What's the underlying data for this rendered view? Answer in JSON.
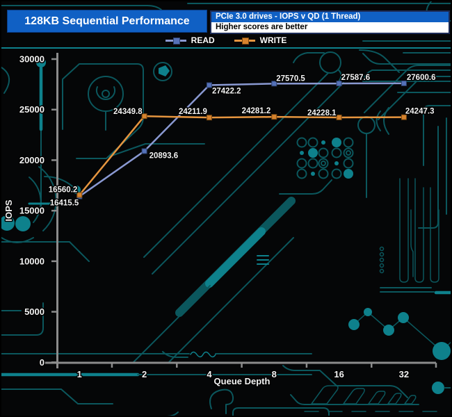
{
  "header": {
    "title": "128KB Sequential Performance",
    "subtitle": "PCIe 3.0 drives - IOPS v QD (1 Thread)",
    "note": "Higher scores are better"
  },
  "colors": {
    "title_bg": "#1060c4",
    "note_bg": "#ffffff",
    "axis": "#8c8c8c",
    "read_line": "#8a99d2",
    "read_marker": "#5571b8",
    "write_line": "#e6953f",
    "write_marker": "#d6832e",
    "label_text": "#f2f2f2",
    "write_qd1_label": "#e8923c",
    "circuit_dim": "#0b575d",
    "circuit_bright": "#0e818c"
  },
  "legend": {
    "items": [
      {
        "label": "READ"
      },
      {
        "label": "WRITE"
      }
    ]
  },
  "chart_data": {
    "type": "line",
    "title": "128KB Sequential Performance",
    "subtitle": "PCIe 3.0 drives - IOPS v QD (1 Thread)",
    "note": "Higher scores are better",
    "xlabel": "Queue Depth",
    "ylabel": "IOPS",
    "x_scale": "log2",
    "categories": [
      "1",
      "2",
      "4",
      "8",
      "16",
      "32"
    ],
    "ylim": [
      0,
      30000
    ],
    "y_ticks": [
      0,
      5000,
      10000,
      15000,
      20000,
      25000,
      30000
    ],
    "grid": false,
    "legend_position": "top-center",
    "series": [
      {
        "name": "READ",
        "line_color": "#8a99d2",
        "marker_color": "#5571b8",
        "marker_edge": "#2e4270",
        "values": [
          16415.5,
          20893.6,
          27422.2,
          27570.5,
          27587.6,
          27600.6
        ],
        "label_placement": [
          {
            "anchor": "end",
            "dx": -1,
            "dy": 13
          },
          {
            "anchor": "start",
            "dx": 7,
            "dy": 10
          },
          {
            "anchor": "start",
            "dx": 4,
            "dy": 12
          },
          {
            "anchor": "start",
            "dx": 3,
            "dy": -4
          },
          {
            "anchor": "start",
            "dx": 3,
            "dy": -5
          },
          {
            "anchor": "start",
            "dx": 4,
            "dy": -5
          }
        ]
      },
      {
        "name": "WRITE",
        "line_color": "#e6953f",
        "marker_color": "#d6832e",
        "marker_edge": "#7d4a10",
        "values": [
          16560.2,
          24349.8,
          24211.9,
          24281.2,
          24228.1,
          24247.3
        ],
        "label_colors": [
          "#e8923c",
          null,
          null,
          null,
          null,
          null
        ],
        "label_placement": [
          {
            "anchor": "end",
            "dx": -3,
            "dy": -4
          },
          {
            "anchor": "end",
            "dx": -3,
            "dy": -3
          },
          {
            "anchor": "end",
            "dx": -3,
            "dy": -5
          },
          {
            "anchor": "end",
            "dx": -5,
            "dy": -5
          },
          {
            "anchor": "end",
            "dx": -4,
            "dy": -3
          },
          {
            "anchor": "start",
            "dx": 2,
            "dy": -5
          }
        ]
      }
    ]
  }
}
